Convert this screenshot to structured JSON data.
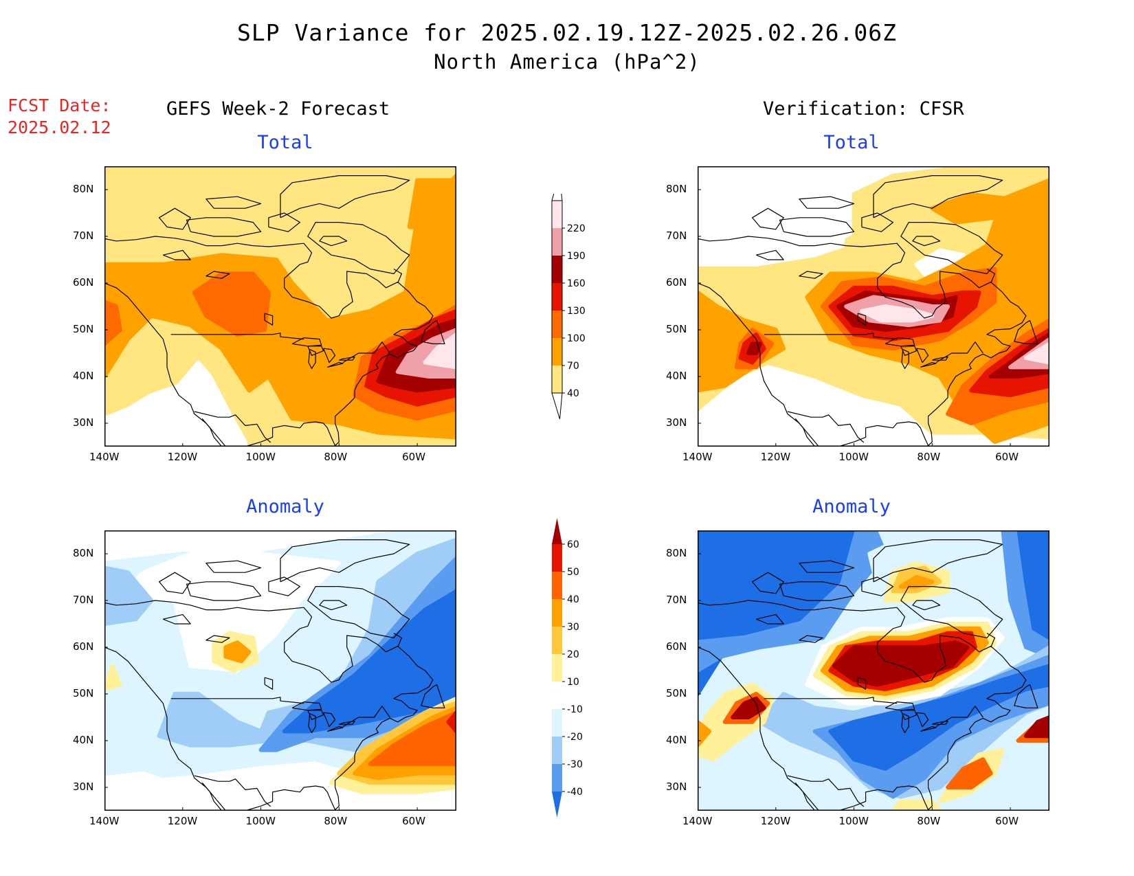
{
  "header": {
    "title": "SLP Variance for 2025.02.19.12Z-2025.02.26.06Z",
    "subtitle": "North America (hPa^2)",
    "fcst_label": "FCST Date:",
    "fcst_date": "2025.02.12"
  },
  "columns": {
    "left": "GEFS Week-2 Forecast",
    "right": "Verification: CFSR"
  },
  "panels": {
    "tl": {
      "subtitle": "Total"
    },
    "tr": {
      "subtitle": "Total"
    },
    "bl": {
      "subtitle": "Anomaly"
    },
    "br": {
      "subtitle": "Anomaly"
    }
  },
  "axes": {
    "lat_labels": [
      "80N",
      "70N",
      "60N",
      "50N",
      "40N",
      "30N"
    ],
    "lon_labels": [
      "140W",
      "120W",
      "100W",
      "80W",
      "60W"
    ],
    "lat_values": [
      80,
      70,
      60,
      50,
      40,
      30
    ],
    "lon_values": [
      -140,
      -120,
      -100,
      -80,
      -60
    ],
    "lon_range": [
      -140,
      -50
    ],
    "lat_range": [
      25,
      85
    ]
  },
  "colorbars": {
    "total": {
      "labels": [
        "40",
        "70",
        "100",
        "130",
        "160",
        "190",
        "220"
      ],
      "colors": [
        "#ffe680",
        "#ffa200",
        "#ff6a00",
        "#e61400",
        "#a50000",
        "#f0a0a8",
        "#ffe6ea"
      ]
    },
    "anomaly": {
      "labels": [
        "-40",
        "-30",
        "-20",
        "-10",
        "10",
        "20",
        "30",
        "40",
        "50",
        "60"
      ],
      "colors": [
        "#1e6ee6",
        "#5a9cf0",
        "#a0cdf8",
        "#dcf5ff",
        "#ffffff",
        "#fff09a",
        "#ffc83c",
        "#ffa000",
        "#ff6400",
        "#e61400",
        "#a50000"
      ]
    }
  }
}
